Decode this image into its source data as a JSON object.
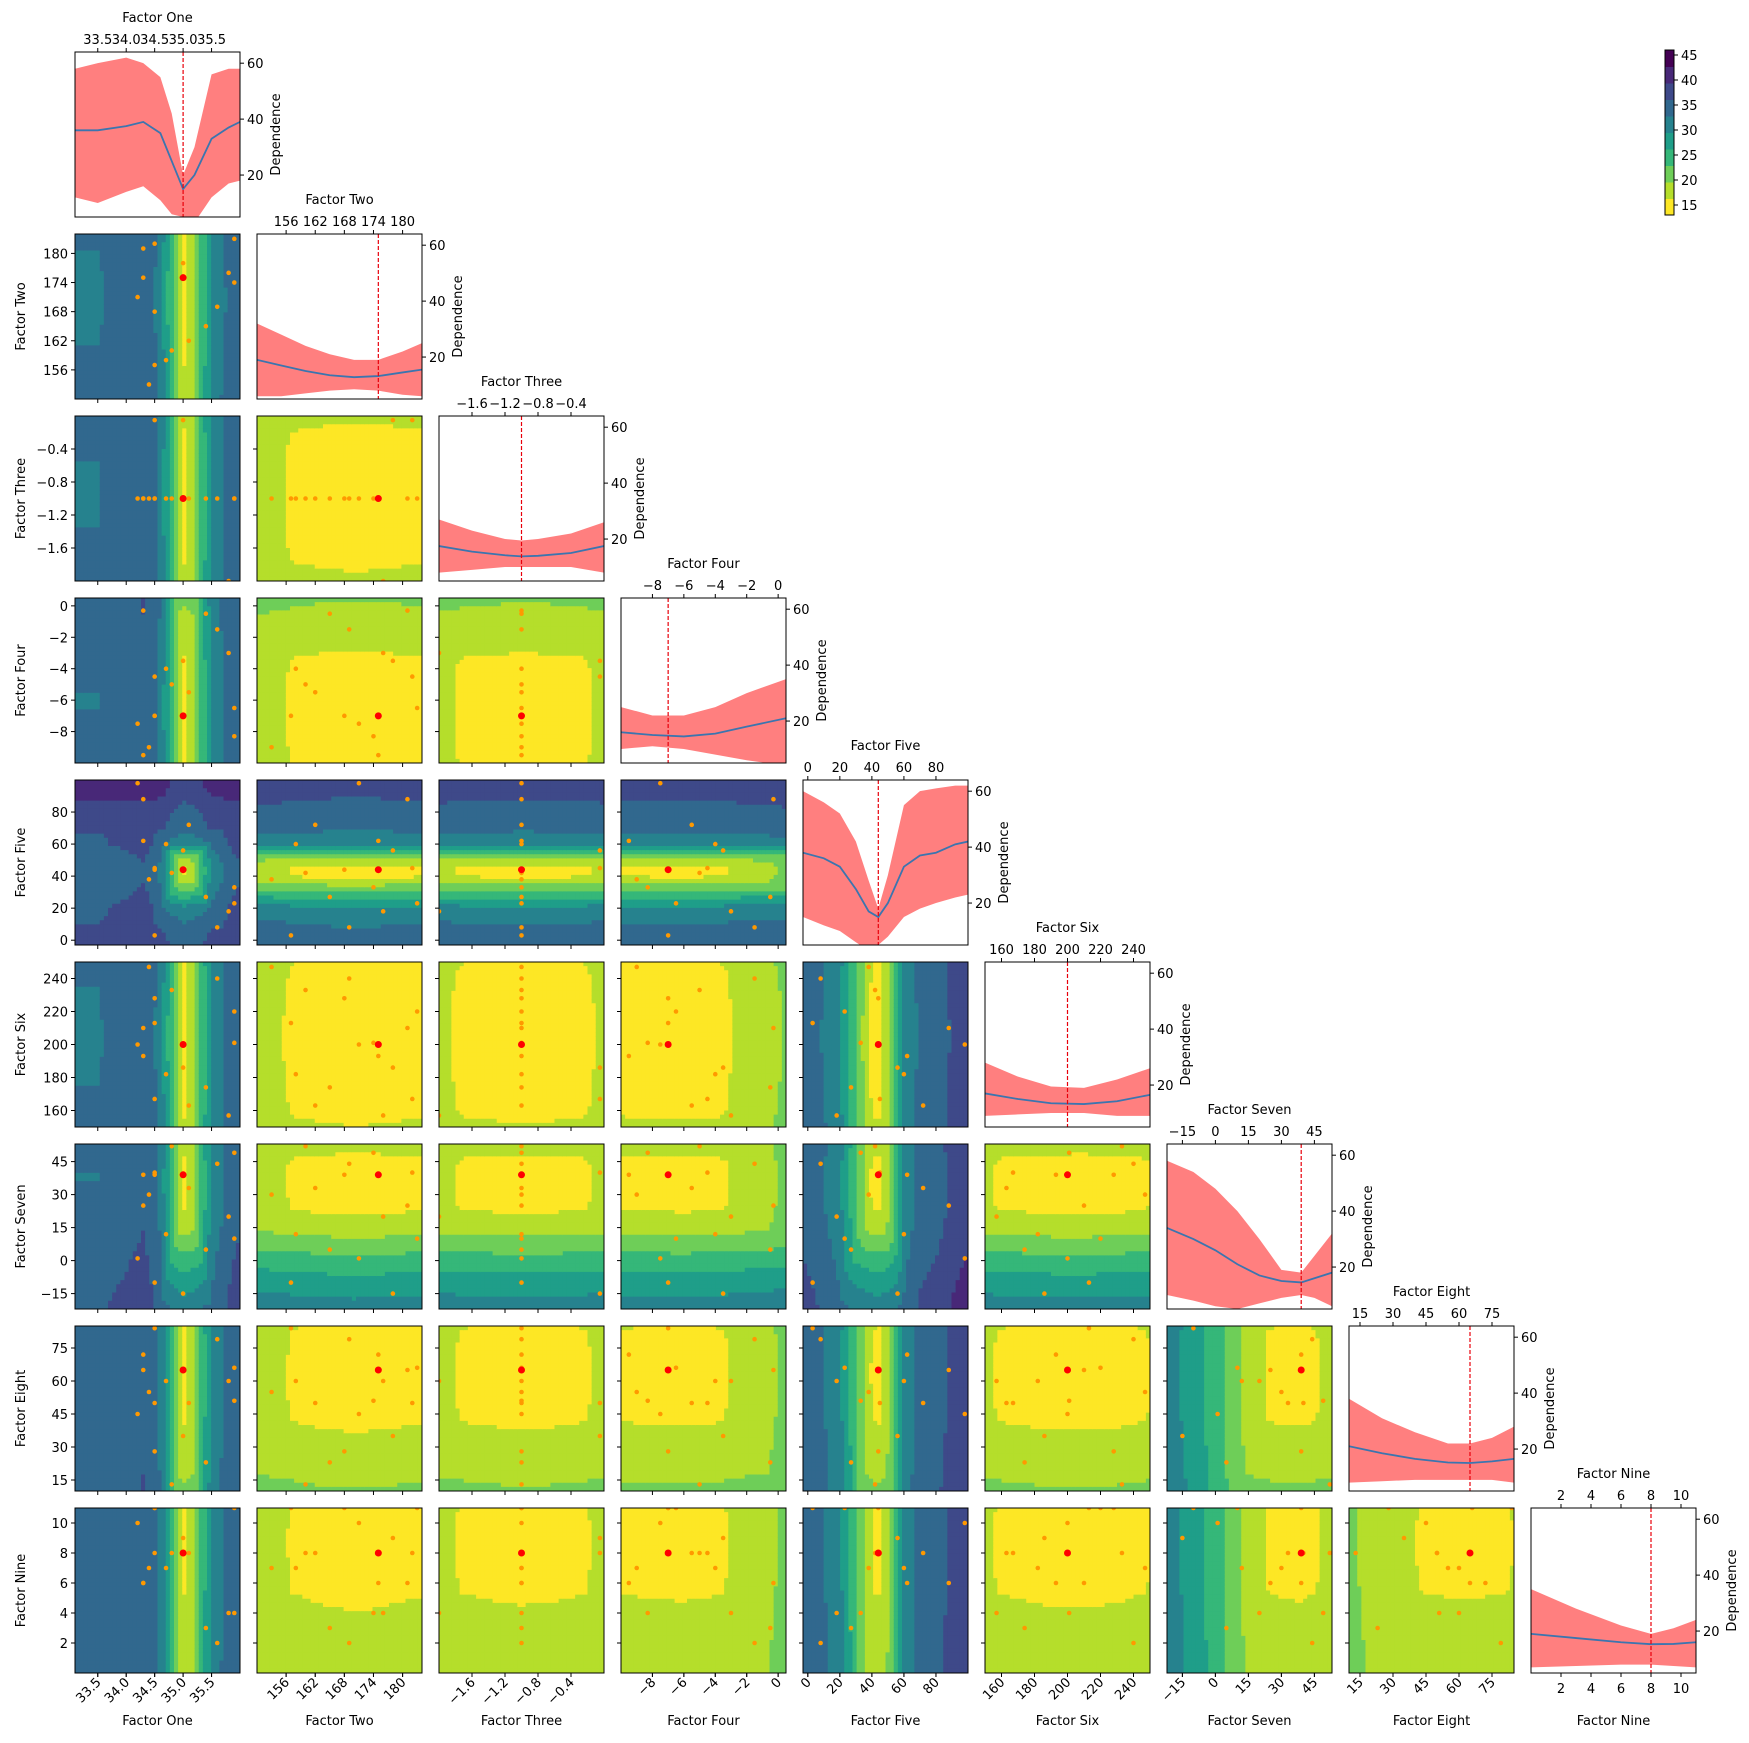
{
  "chart_data": {
    "type": "pairplot",
    "colorbar": {
      "ticks": [
        15,
        20,
        25,
        30,
        35,
        40,
        45
      ],
      "min": 13,
      "max": 46,
      "colors": [
        "#fde725",
        "#b5de2b",
        "#6ece58",
        "#35b779",
        "#1f9e89",
        "#26828e",
        "#31688e",
        "#3e4989",
        "#482878",
        "#440154"
      ]
    },
    "diag_ylabel": "Dependence",
    "diag_yticks": [
      "20",
      "40",
      "60"
    ],
    "diag_yrange": [
      5,
      64
    ],
    "colors": {
      "band": "#ff7f7f",
      "line": "#3b75af",
      "vline": "#e8000b",
      "best_point": "#ff0000",
      "sample_point": "#ff9900"
    },
    "factors": [
      {
        "name": "Factor One",
        "min": 33.1,
        "max": 36.0,
        "best": 35.0,
        "ticks": [
          33.5,
          34.0,
          34.5,
          35.0,
          35.5
        ],
        "tick_labels": [
          "33.5",
          "34.0",
          "34.5",
          "35.0",
          "35.5"
        ],
        "top_tick_labels": [
          "33.5",
          "34.0",
          "34.5",
          "35.0",
          "35.5"
        ],
        "yticks": [],
        "rotate_bottom": true,
        "curve": [
          [
            33.1,
            36
          ],
          [
            33.5,
            36
          ],
          [
            34.0,
            37.5
          ],
          [
            34.3,
            39
          ],
          [
            34.6,
            35
          ],
          [
            34.8,
            25
          ],
          [
            35.0,
            15
          ],
          [
            35.2,
            20
          ],
          [
            35.5,
            33
          ],
          [
            35.8,
            37
          ],
          [
            36.0,
            39
          ]
        ],
        "band": [
          [
            33.1,
            12,
            58
          ],
          [
            33.5,
            10,
            60
          ],
          [
            34.0,
            14,
            62
          ],
          [
            34.3,
            16,
            60
          ],
          [
            34.6,
            11,
            55
          ],
          [
            34.8,
            6,
            42
          ],
          [
            35.0,
            5,
            20
          ],
          [
            35.2,
            3,
            30
          ],
          [
            35.5,
            12,
            56
          ],
          [
            35.8,
            17,
            58
          ],
          [
            36.0,
            18,
            58
          ]
        ],
        "samples": [
          34.5,
          34.3,
          34.5,
          35.4,
          35.8,
          34.2,
          34.8,
          35.9,
          34.4,
          35.0,
          35.6,
          34.3,
          34.5,
          35.1,
          35.9,
          34.7
        ]
      },
      {
        "name": "Factor Two",
        "min": 150,
        "max": 184,
        "best": 175,
        "ticks": [
          156,
          162,
          168,
          174,
          180
        ],
        "tick_labels": [
          "156",
          "162",
          "168",
          "174",
          "180"
        ],
        "top_tick_labels": [
          "156",
          "162",
          "168",
          "174",
          "180"
        ],
        "yticks": [
          "156",
          "162",
          "168",
          "174",
          "180"
        ],
        "rotate_bottom": true,
        "curve": [
          [
            150,
            19
          ],
          [
            155,
            17
          ],
          [
            160,
            15
          ],
          [
            165,
            13.5
          ],
          [
            170,
            12.8
          ],
          [
            175,
            13.2
          ],
          [
            180,
            14.5
          ],
          [
            184,
            15.5
          ]
        ],
        "band": [
          [
            150,
            6,
            32
          ],
          [
            155,
            6,
            28
          ],
          [
            160,
            7,
            24
          ],
          [
            165,
            8,
            21
          ],
          [
            170,
            8.5,
            19
          ],
          [
            175,
            8,
            19
          ],
          [
            180,
            6.5,
            22
          ],
          [
            184,
            6,
            25
          ]
        ],
        "samples": [
          157,
          175,
          182,
          165,
          176,
          171,
          160,
          183,
          153,
          178,
          169,
          181,
          168,
          162,
          174,
          158
        ]
      },
      {
        "name": "Factor Three",
        "min": -2.0,
        "max": 0.0,
        "best": -1.0,
        "ticks": [
          -1.6,
          -1.2,
          -0.8,
          -0.4
        ],
        "tick_labels": [
          "−1.6",
          "−1.2",
          "−0.8",
          "−0.4"
        ],
        "top_tick_labels": [
          "−1.6",
          "−1.2",
          "−0.8",
          "−0.4"
        ],
        "yticks": [
          "−1.6",
          "−1.2",
          "−0.8",
          "−0.4"
        ],
        "rotate_bottom": true,
        "curve": [
          [
            -2.0,
            17.5
          ],
          [
            -1.6,
            15.5
          ],
          [
            -1.2,
            14.2
          ],
          [
            -1.0,
            13.8
          ],
          [
            -0.8,
            14
          ],
          [
            -0.4,
            15
          ],
          [
            0.0,
            17.5
          ]
        ],
        "band": [
          [
            -2.0,
            8,
            27
          ],
          [
            -1.6,
            9,
            23
          ],
          [
            -1.2,
            10,
            20
          ],
          [
            -1.0,
            10,
            19.5
          ],
          [
            -0.8,
            10,
            20
          ],
          [
            -0.4,
            10,
            22
          ],
          [
            0.0,
            8,
            26
          ]
        ],
        "samples": [
          -1.0,
          -1.0,
          -0.05,
          -1.0,
          -2.0,
          -1.0,
          -1.0,
          -1.0,
          -1.0,
          -0.05,
          -1.0,
          -1.0,
          -1.0,
          -1.0,
          -1.0,
          -1.0
        ]
      },
      {
        "name": "Factor Four",
        "min": -10.0,
        "max": 0.5,
        "best": -7.0,
        "ticks": [
          -8,
          -6,
          -4,
          -2,
          0
        ],
        "tick_labels": [
          "−8",
          "−6",
          "−4",
          "−2",
          "0"
        ],
        "top_tick_labels": [
          "−8",
          "−6",
          "−4",
          "−2",
          "0"
        ],
        "yticks": [
          "−8",
          "−6",
          "−4",
          "−2",
          "0"
        ],
        "rotate_bottom": true,
        "curve": [
          [
            -10,
            16
          ],
          [
            -8,
            15
          ],
          [
            -6,
            14.5
          ],
          [
            -4,
            15.5
          ],
          [
            -2,
            18
          ],
          [
            0.5,
            21
          ]
        ],
        "band": [
          [
            -10,
            10,
            25
          ],
          [
            -8,
            11,
            22
          ],
          [
            -6,
            10,
            22
          ],
          [
            -4,
            8,
            25
          ],
          [
            -2,
            6,
            30
          ],
          [
            0.5,
            4,
            35
          ]
        ],
        "samples": [
          -7,
          -9.5,
          -4.5,
          -0.5,
          -3,
          -7.5,
          -5,
          -6.5,
          -9,
          -3.5,
          -1.5,
          -0.3,
          -7,
          -5.5,
          -8.3,
          -4
        ]
      },
      {
        "name": "Factor Five",
        "min": -3,
        "max": 100,
        "best": 44,
        "ticks": [
          0,
          20,
          40,
          60,
          80
        ],
        "tick_labels": [
          "0",
          "20",
          "40",
          "60",
          "80"
        ],
        "top_tick_labels": [
          "0",
          "20",
          "40",
          "60",
          "80"
        ],
        "yticks": [
          "0",
          "20",
          "40",
          "60",
          "80"
        ],
        "rotate_bottom": true,
        "curve": [
          [
            -3,
            38
          ],
          [
            10,
            36
          ],
          [
            20,
            33
          ],
          [
            30,
            25
          ],
          [
            38,
            17
          ],
          [
            44,
            15
          ],
          [
            50,
            20
          ],
          [
            60,
            33
          ],
          [
            70,
            37
          ],
          [
            80,
            38
          ],
          [
            92,
            41
          ],
          [
            100,
            42
          ]
        ],
        "band": [
          [
            -3,
            15,
            60
          ],
          [
            10,
            12,
            56
          ],
          [
            20,
            10,
            52
          ],
          [
            30,
            6,
            42
          ],
          [
            38,
            3,
            28
          ],
          [
            44,
            5,
            18
          ],
          [
            50,
            8,
            30
          ],
          [
            60,
            15,
            55
          ],
          [
            70,
            18,
            60
          ],
          [
            80,
            20,
            61
          ],
          [
            92,
            22,
            62
          ],
          [
            100,
            23,
            62
          ]
        ],
        "samples": [
          3,
          62,
          45,
          27,
          18,
          98,
          42,
          23,
          38,
          56,
          8,
          88,
          44,
          72,
          33,
          60
        ]
      },
      {
        "name": "Factor Six",
        "min": 150,
        "max": 250,
        "best": 200,
        "ticks": [
          160,
          180,
          200,
          220,
          240
        ],
        "tick_labels": [
          "160",
          "180",
          "200",
          "220",
          "240"
        ],
        "top_tick_labels": [
          "160",
          "180",
          "200",
          "220",
          "240"
        ],
        "yticks": [
          "160",
          "180",
          "200",
          "220",
          "240"
        ],
        "rotate_bottom": true,
        "curve": [
          [
            150,
            17
          ],
          [
            170,
            15
          ],
          [
            190,
            13.5
          ],
          [
            210,
            13.2
          ],
          [
            230,
            14.2
          ],
          [
            250,
            16.5
          ]
        ],
        "band": [
          [
            150,
            9,
            28
          ],
          [
            170,
            9.5,
            23
          ],
          [
            190,
            10,
            19.5
          ],
          [
            210,
            10,
            19
          ],
          [
            230,
            9,
            22
          ],
          [
            250,
            9,
            26
          ]
        ],
        "samples": [
          213,
          193,
          167,
          174,
          157,
          200,
          233,
          220,
          247,
          186,
          240,
          210,
          228,
          163,
          201,
          182
        ]
      },
      {
        "name": "Factor Seven",
        "min": -22,
        "max": 53,
        "best": 39,
        "ticks": [
          -15,
          0,
          15,
          30,
          45
        ],
        "tick_labels": [
          "−15",
          "0",
          "15",
          "30",
          "45"
        ],
        "top_tick_labels": [
          "−15",
          "0",
          "15",
          "30",
          "45"
        ],
        "yticks": [
          "−15",
          "0",
          "15",
          "30",
          "45"
        ],
        "rotate_bottom": true,
        "curve": [
          [
            -22,
            34
          ],
          [
            -10,
            30
          ],
          [
            0,
            26
          ],
          [
            10,
            21
          ],
          [
            20,
            17
          ],
          [
            30,
            15
          ],
          [
            39,
            14.5
          ],
          [
            45,
            16
          ],
          [
            53,
            18
          ]
        ],
        "band": [
          [
            -22,
            10,
            58
          ],
          [
            -10,
            8,
            54
          ],
          [
            0,
            6,
            48
          ],
          [
            10,
            5,
            40
          ],
          [
            20,
            7,
            30
          ],
          [
            30,
            9,
            19
          ],
          [
            39,
            10,
            18
          ],
          [
            45,
            9,
            24
          ],
          [
            53,
            6,
            32
          ]
        ],
        "samples": [
          -10,
          39,
          40,
          5,
          20,
          1,
          52,
          10,
          30,
          -15,
          44,
          25,
          39,
          33,
          49,
          12
        ]
      },
      {
        "name": "Factor Eight",
        "min": 10,
        "max": 85,
        "best": 65,
        "ticks": [
          15,
          30,
          45,
          60,
          75
        ],
        "tick_labels": [
          "15",
          "30",
          "45",
          "60",
          "75"
        ],
        "top_tick_labels": [
          "15",
          "30",
          "45",
          "60",
          "75"
        ],
        "yticks": [
          "15",
          "30",
          "45",
          "60",
          "75"
        ],
        "rotate_bottom": true,
        "curve": [
          [
            10,
            21
          ],
          [
            25,
            18.5
          ],
          [
            40,
            16.5
          ],
          [
            55,
            15.2
          ],
          [
            65,
            15
          ],
          [
            75,
            15.6
          ],
          [
            85,
            16.5
          ]
        ],
        "band": [
          [
            10,
            8,
            38
          ],
          [
            25,
            8.5,
            31
          ],
          [
            40,
            9,
            26
          ],
          [
            55,
            9,
            22
          ],
          [
            65,
            9,
            22
          ],
          [
            75,
            9,
            24
          ],
          [
            85,
            8,
            28
          ]
        ],
        "samples": [
          84,
          72,
          50,
          23,
          60,
          45,
          13,
          66,
          55,
          35,
          79,
          65,
          28,
          50,
          51,
          60
        ]
      },
      {
        "name": "Factor Nine",
        "min": 0,
        "max": 11,
        "best": 8,
        "ticks": [
          2,
          4,
          6,
          8,
          10
        ],
        "tick_labels": [
          "2",
          "4",
          "6",
          "8",
          "10"
        ],
        "top_tick_labels": [
          "2",
          "4",
          "6",
          "8",
          "10"
        ],
        "yticks": [
          "2",
          "4",
          "6",
          "8",
          "10"
        ],
        "rotate_bottom": false,
        "curve": [
          [
            0,
            19
          ],
          [
            3,
            17.5
          ],
          [
            6,
            16
          ],
          [
            8,
            15.3
          ],
          [
            9.5,
            15.4
          ],
          [
            11,
            16
          ]
        ],
        "band": [
          [
            0,
            7,
            35
          ],
          [
            3,
            7.5,
            28
          ],
          [
            6,
            8,
            22
          ],
          [
            8,
            8,
            19
          ],
          [
            9.5,
            7.5,
            21
          ],
          [
            11,
            7,
            24
          ]
        ],
        "samples": [
          11,
          6,
          8,
          3,
          4,
          10,
          8,
          11,
          7,
          9,
          2,
          6,
          11,
          8,
          4,
          7
        ]
      }
    ]
  }
}
